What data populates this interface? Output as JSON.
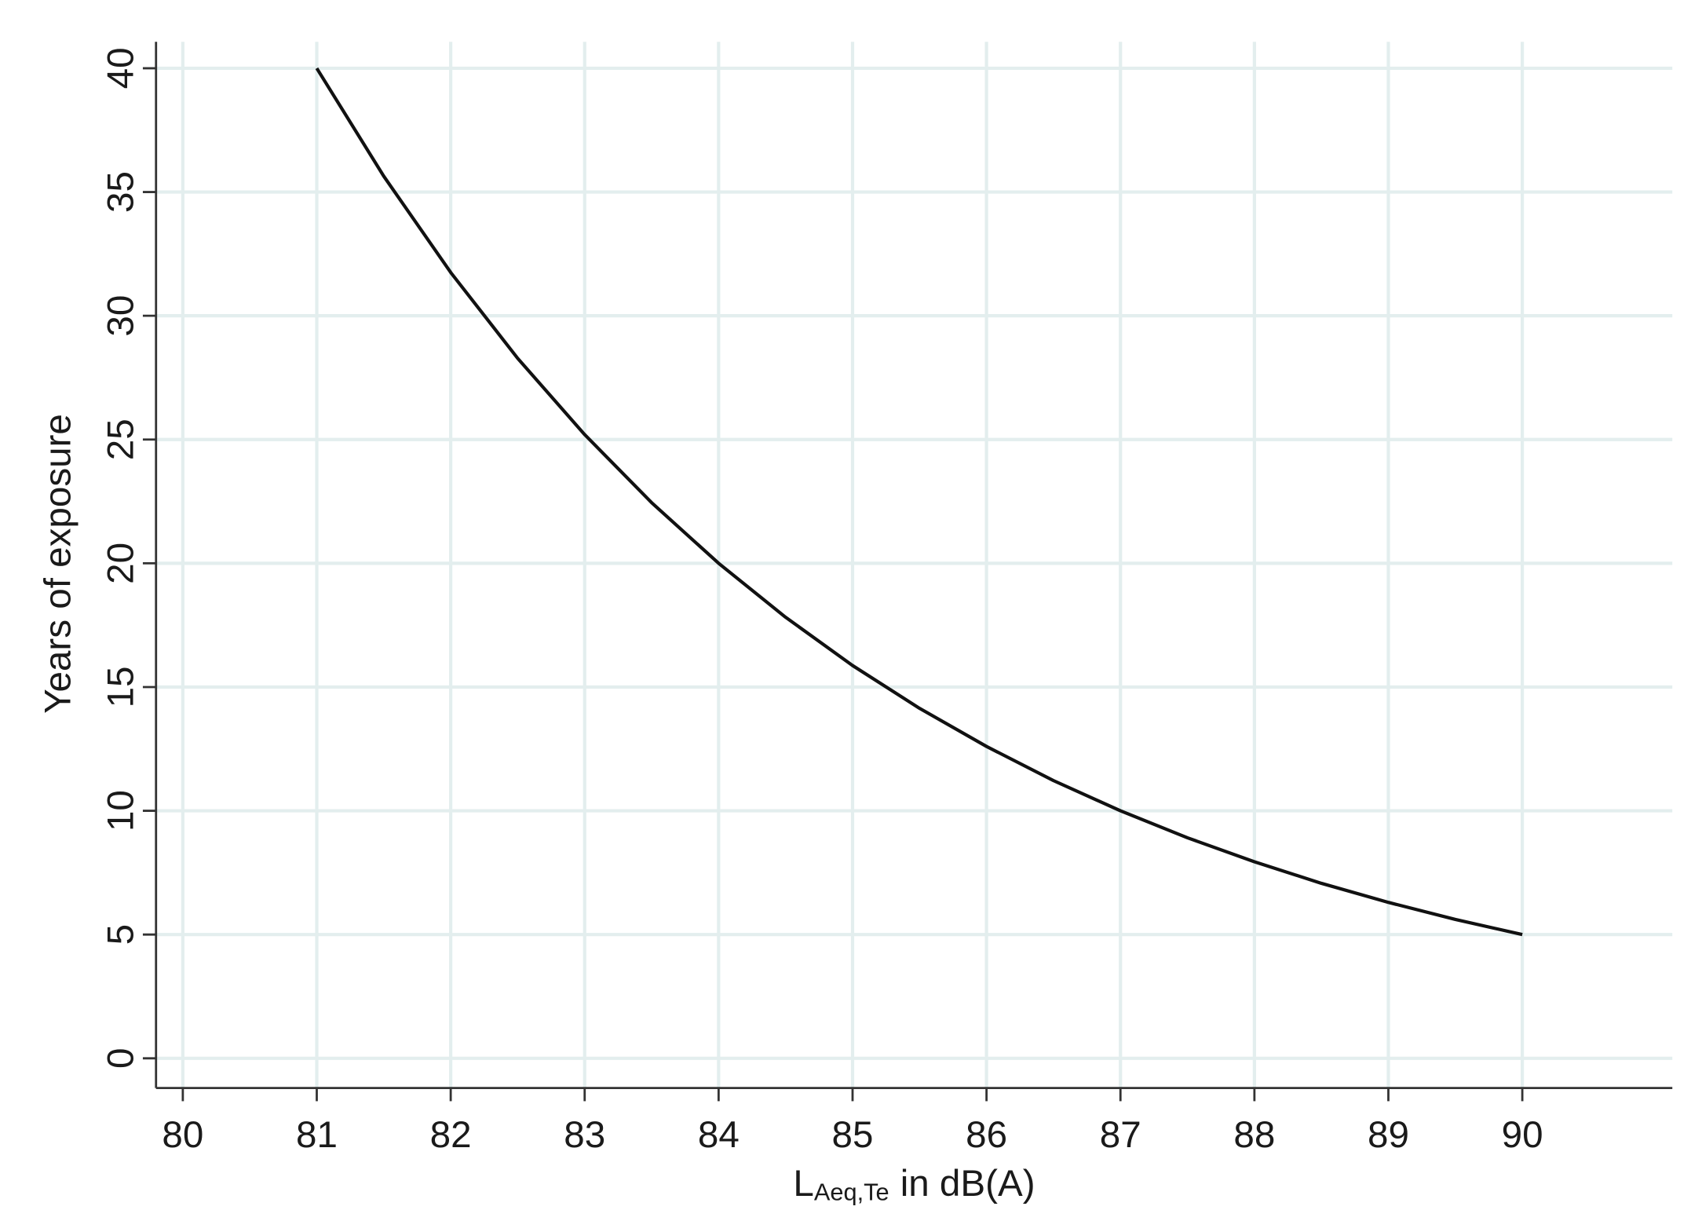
{
  "chart_data": {
    "type": "line",
    "xlabel_parts": [
      "L",
      "Aeq,Te",
      "in dB(A)"
    ],
    "ylabel": "Years of exposure",
    "x": [
      81,
      81.5,
      82,
      82.5,
      83,
      83.5,
      84,
      84.5,
      85,
      85.5,
      86,
      86.5,
      87,
      87.5,
      88,
      88.5,
      89,
      89.5,
      90
    ],
    "series": [
      {
        "color": "#111111",
        "values": [
          40,
          35.64,
          31.75,
          28.28,
          25.2,
          22.45,
          20,
          17.82,
          15.87,
          14.14,
          12.6,
          11.22,
          10,
          8.91,
          7.94,
          7.07,
          6.3,
          5.61,
          5
        ]
      }
    ],
    "xlim": [
      79.8,
      91.12
    ],
    "ylim": [
      -1.2,
      41.07
    ],
    "xticks": [
      80,
      81,
      82,
      83,
      84,
      85,
      86,
      87,
      88,
      89,
      90
    ],
    "yticks": [
      0,
      5,
      10,
      15,
      20,
      25,
      30,
      35,
      40
    ],
    "grid": true,
    "grid_color": "#e3eeee"
  }
}
